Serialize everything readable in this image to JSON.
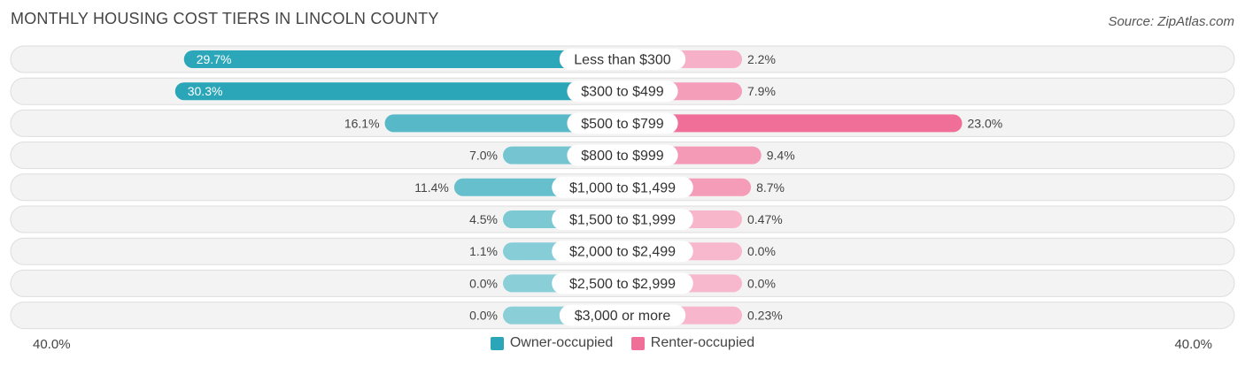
{
  "title": "MONTHLY HOUSING COST TIERS IN LINCOLN COUNTY",
  "source": "Source: ZipAtlas.com",
  "axis": {
    "left_label": "40.0%",
    "right_label": "40.0%"
  },
  "legend": [
    {
      "label": "Owner-occupied",
      "color": "#2aa6b8"
    },
    {
      "label": "Renter-occupied",
      "color": "#ef6f98"
    }
  ],
  "chart_data": {
    "type": "bar",
    "orientation": "diverging-horizontal",
    "xlim": [
      -40,
      40
    ],
    "categories": [
      "Less than $300",
      "$300 to $499",
      "$500 to $799",
      "$800 to $999",
      "$1,000 to $1,499",
      "$1,500 to $1,999",
      "$2,000 to $2,499",
      "$2,500 to $2,999",
      "$3,000 or more"
    ],
    "series": [
      {
        "name": "Owner-occupied",
        "values": [
          29.7,
          30.3,
          16.1,
          7.0,
          11.4,
          4.5,
          1.1,
          0.0,
          0.0
        ],
        "labels": [
          "29.7%",
          "30.3%",
          "16.1%",
          "7.0%",
          "11.4%",
          "4.5%",
          "1.1%",
          "0.0%",
          "0.0%"
        ]
      },
      {
        "name": "Renter-occupied",
        "values": [
          2.2,
          7.9,
          23.0,
          9.4,
          8.7,
          0.47,
          0.0,
          0.0,
          0.23
        ],
        "labels": [
          "2.2%",
          "7.9%",
          "23.0%",
          "9.4%",
          "8.7%",
          "0.47%",
          "0.0%",
          "0.0%",
          "0.23%"
        ]
      }
    ]
  }
}
